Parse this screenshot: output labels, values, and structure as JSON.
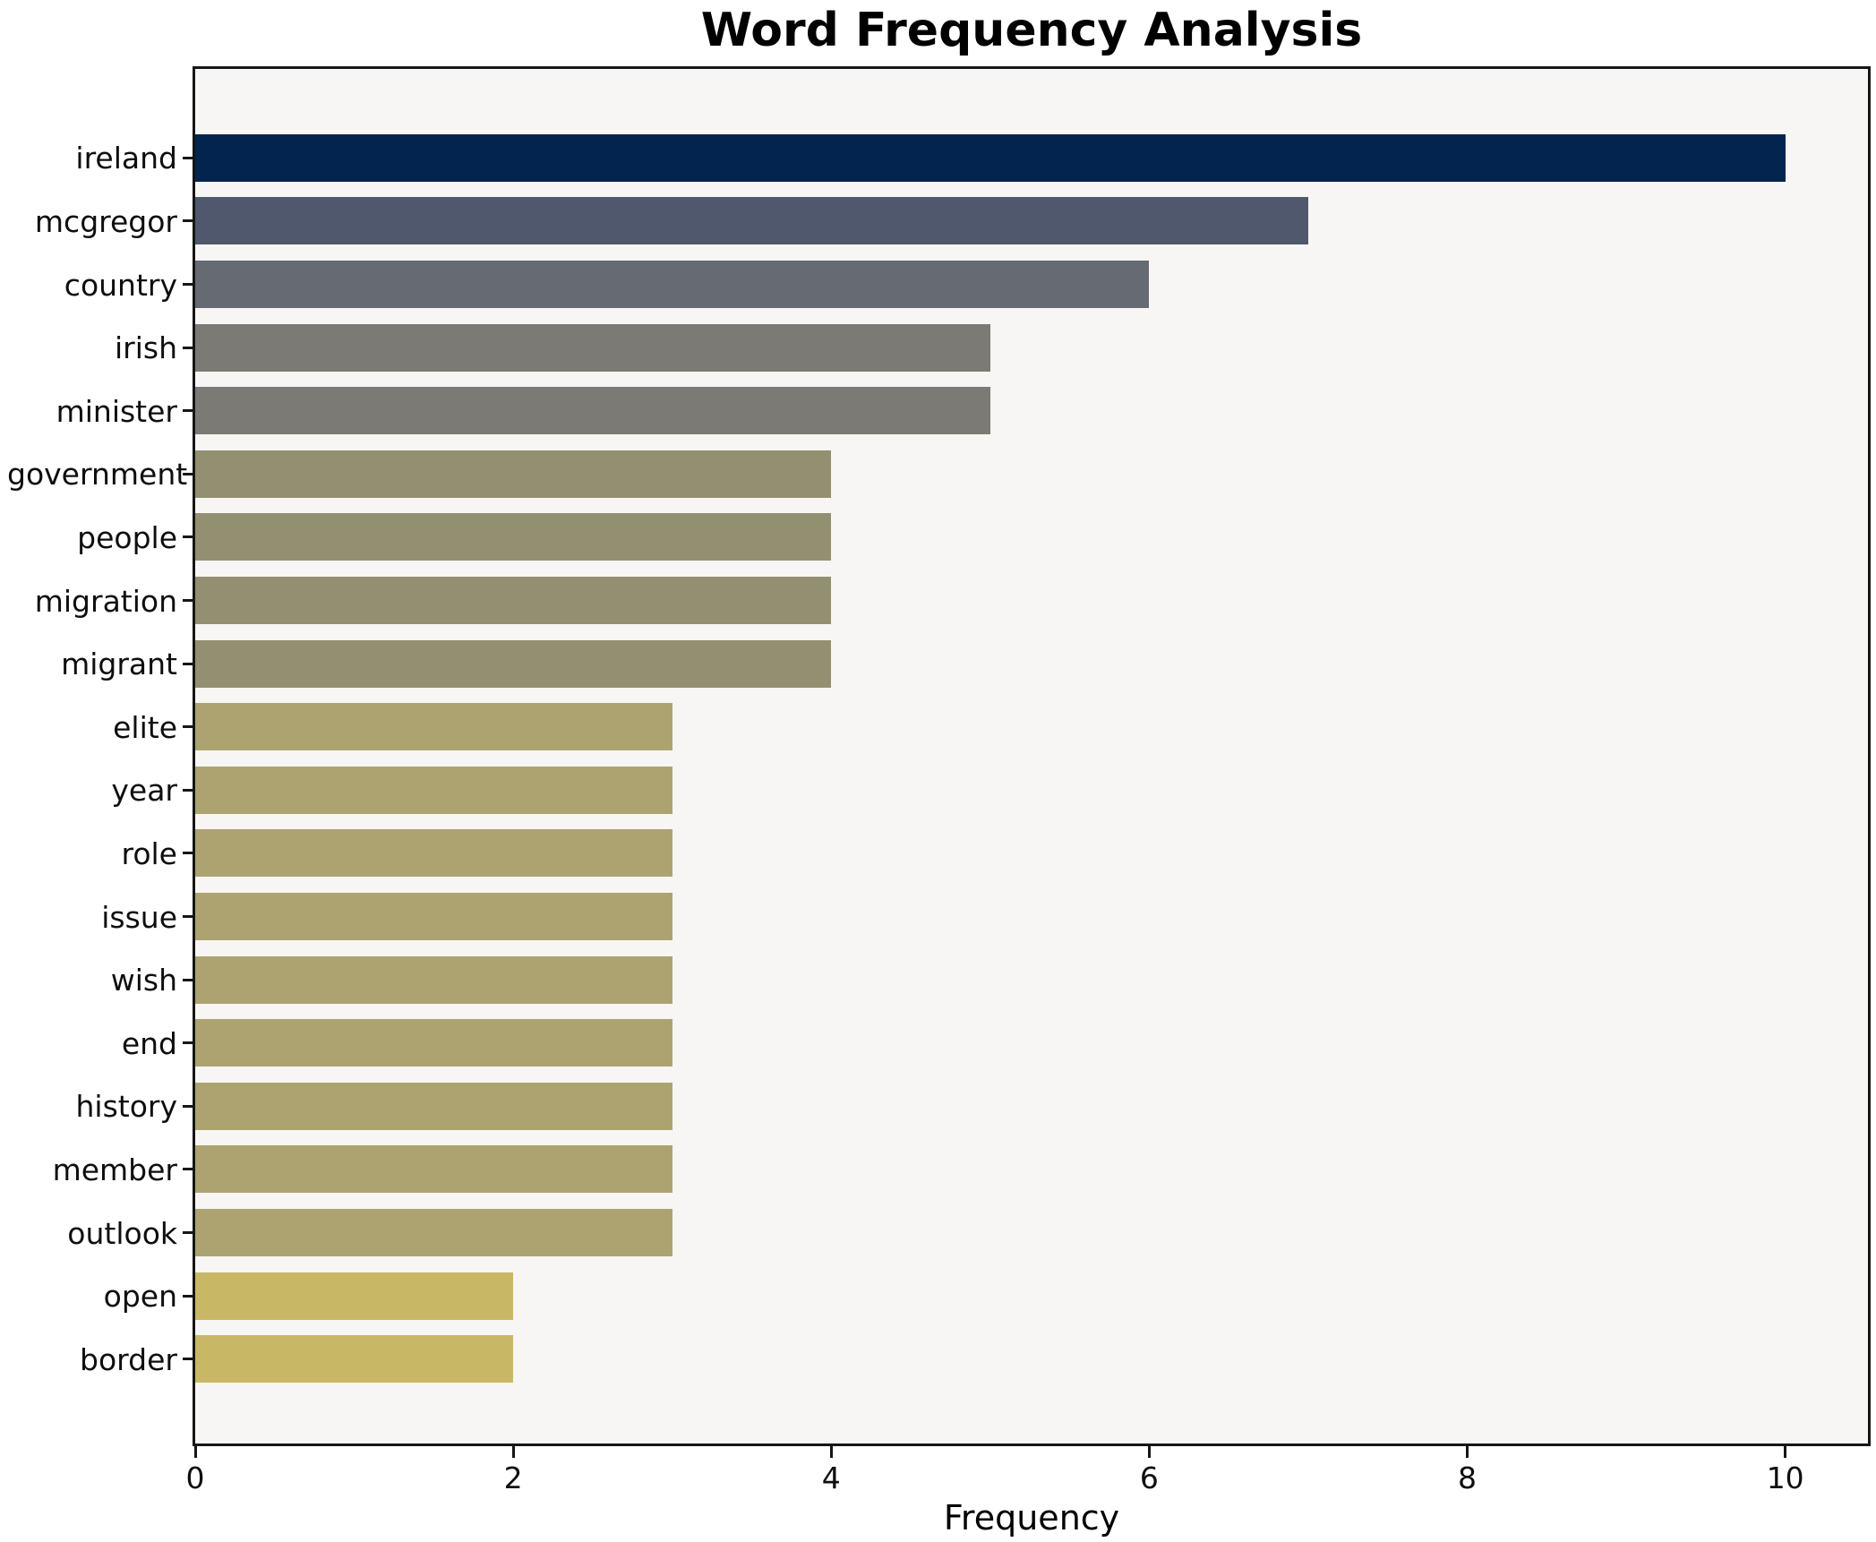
{
  "title": "Word Frequency Analysis",
  "chart_data": {
    "type": "bar",
    "orientation": "horizontal",
    "title": "Word Frequency Analysis",
    "xlabel": "Frequency",
    "ylabel": "",
    "xlim": [
      0,
      10.52
    ],
    "xticks": [
      0,
      2,
      4,
      6,
      8,
      10
    ],
    "grid": false,
    "legend": false,
    "plot_background": "#f7f6f4",
    "spine_color": "#161616",
    "categories": [
      "ireland",
      "mcgregor",
      "country",
      "irish",
      "minister",
      "government",
      "people",
      "migration",
      "migrant",
      "elite",
      "year",
      "role",
      "issue",
      "wish",
      "end",
      "history",
      "member",
      "outlook",
      "open",
      "border"
    ],
    "values": [
      10,
      7,
      6,
      5,
      5,
      4,
      4,
      4,
      4,
      3,
      3,
      3,
      3,
      3,
      3,
      3,
      3,
      3,
      2,
      2
    ],
    "bar_colors": [
      "#02244e",
      "#4f586c",
      "#666a72",
      "#7b7a74",
      "#7b7a74",
      "#939072",
      "#939072",
      "#939072",
      "#939072",
      "#aca371",
      "#aca371",
      "#aca371",
      "#aca371",
      "#aca371",
      "#aca371",
      "#aca371",
      "#aca371",
      "#aca371",
      "#c8b765",
      "#c8b765"
    ]
  }
}
